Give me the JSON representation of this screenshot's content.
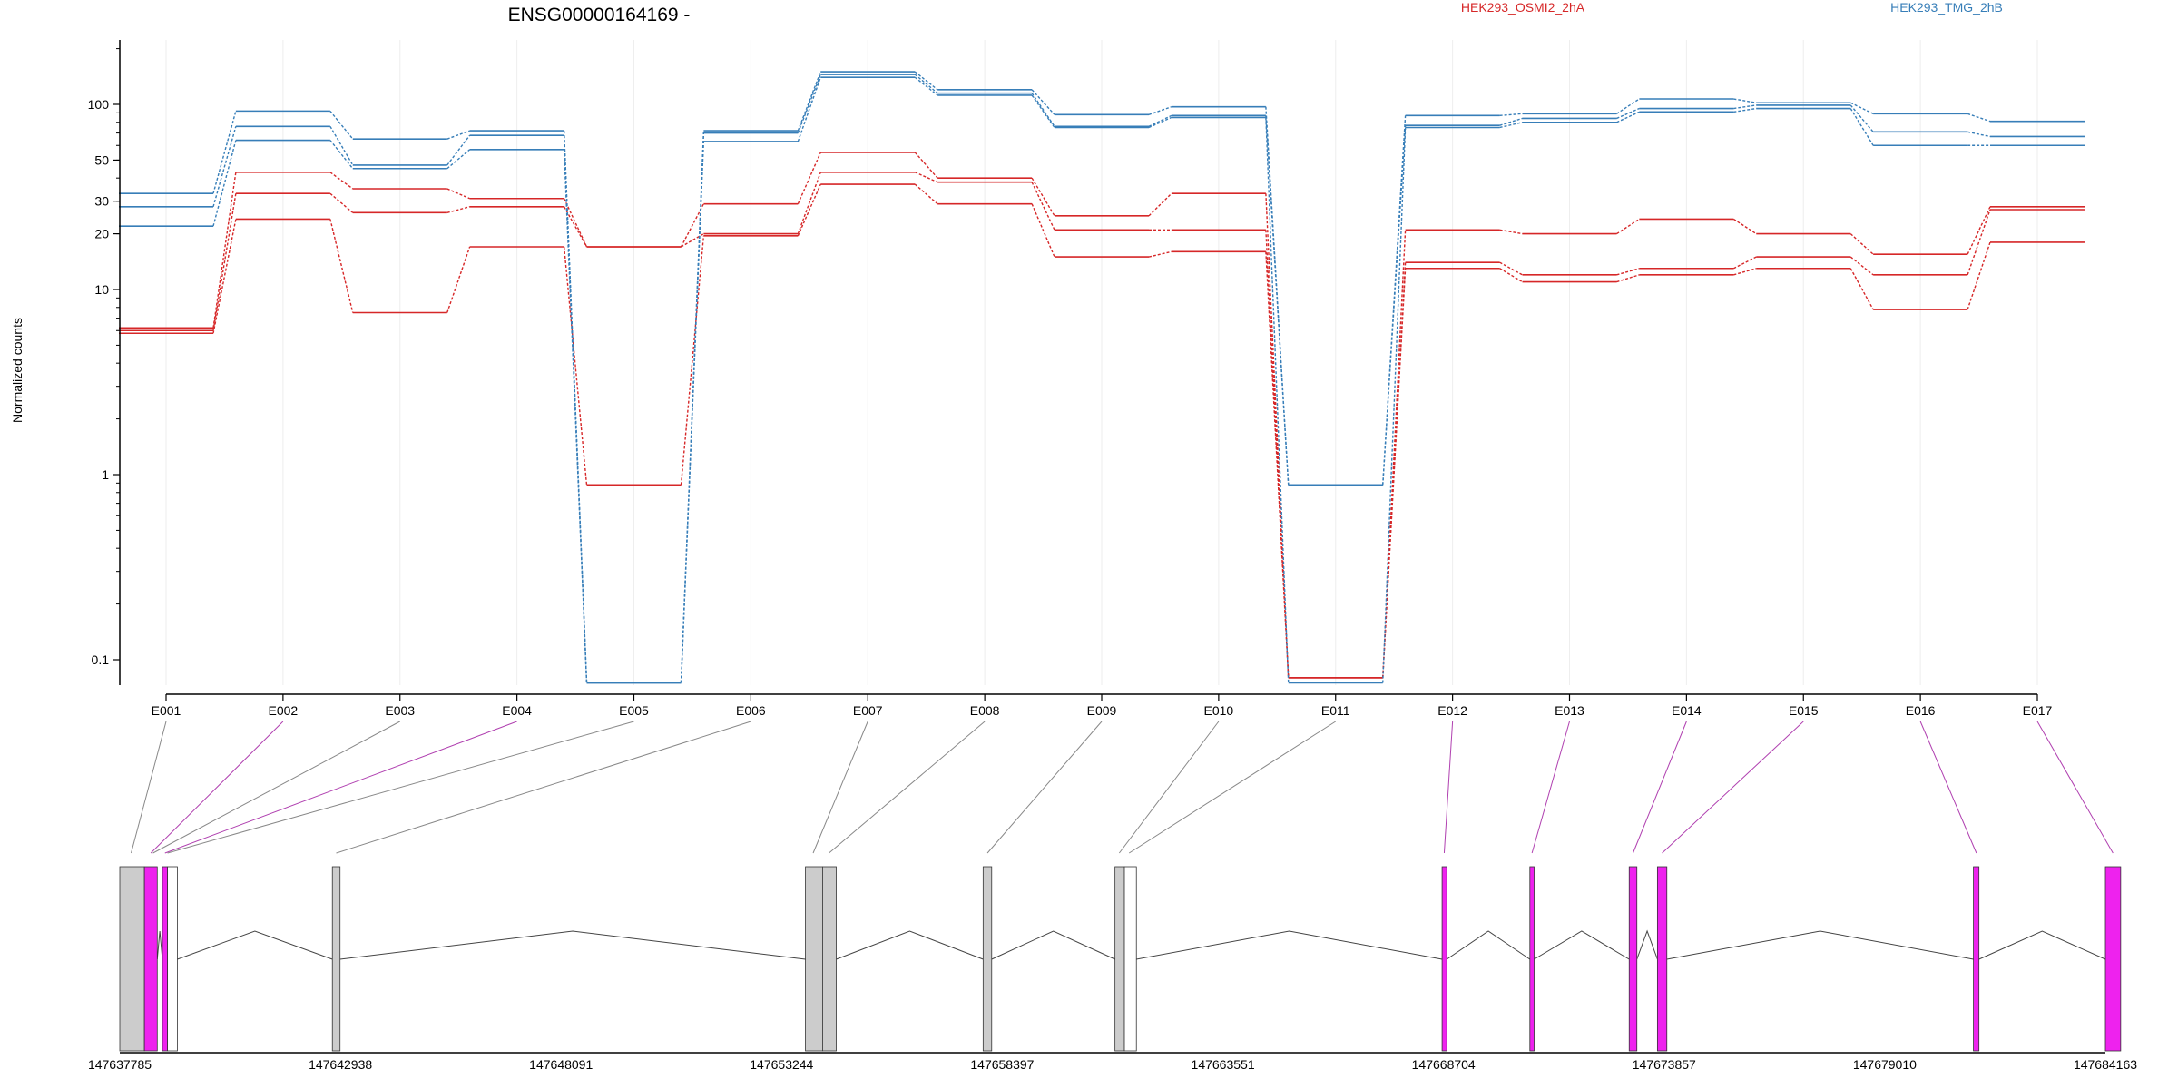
{
  "chart_data": {
    "type": "line",
    "title": "ENSG00000164169 -",
    "ylabel": "Normalized counts",
    "xlabel": "",
    "y_scale": "log",
    "ylim": [
      0.07,
      250
    ],
    "grid": "vertical lines at exon positions",
    "legend_placement": "top-right",
    "y_ticks": [
      {
        "value": 0.1,
        "label": "0.1"
      },
      {
        "value": 1,
        "label": "1"
      },
      {
        "value": 10,
        "label": "10"
      },
      {
        "value": 20,
        "label": "20"
      },
      {
        "value": 30,
        "label": "30"
      },
      {
        "value": 50,
        "label": "50"
      },
      {
        "value": 100,
        "label": "100"
      }
    ],
    "categories": [
      "E001",
      "E002",
      "E003",
      "E004",
      "E005",
      "E006",
      "E007",
      "E008",
      "E009",
      "E010",
      "E011",
      "E012",
      "E013",
      "E014",
      "E015",
      "E016",
      "E017"
    ],
    "groups": [
      {
        "name": "HEK293_OSMI2_2hA",
        "color": "#d62728"
      },
      {
        "name": "HEK293_TMG_2hB",
        "color": "#377eb8"
      }
    ],
    "series": [
      {
        "group": 0,
        "values": [
          6.2,
          43,
          35,
          31,
          17,
          29,
          55,
          40,
          25,
          33,
          0.08,
          21,
          20,
          24,
          20,
          15.5,
          28
        ]
      },
      {
        "group": 0,
        "values": [
          6.0,
          33,
          26,
          28,
          17,
          20,
          43,
          38,
          21,
          21,
          0.08,
          14,
          12,
          13,
          15,
          12,
          27
        ]
      },
      {
        "group": 0,
        "values": [
          5.8,
          24,
          7.5,
          17,
          0.88,
          19.5,
          37,
          29,
          15,
          16,
          0.08,
          13,
          11,
          12,
          13,
          7.8,
          18
        ]
      },
      {
        "group": 1,
        "values": [
          33,
          92,
          65,
          72,
          0.075,
          72,
          150,
          120,
          88,
          97,
          0.88,
          87,
          89,
          107,
          102,
          89,
          81
        ]
      },
      {
        "group": 1,
        "values": [
          28,
          76,
          47,
          68,
          0.075,
          70,
          145,
          115,
          76,
          87,
          0.88,
          77,
          84,
          95,
          99,
          71,
          67
        ]
      },
      {
        "group": 1,
        "values": [
          22,
          64,
          45,
          57,
          0.075,
          63,
          140,
          112,
          75,
          85,
          0.075,
          75,
          80,
          91,
          95,
          60,
          60
        ]
      }
    ],
    "gene_model": {
      "coordinate_ticks": [
        "147637785",
        "147642938",
        "147648091",
        "147653244",
        "147658397",
        "147663551",
        "147668704",
        "147673857",
        "147679010",
        "147684163"
      ],
      "coord_range": [
        147637785,
        147684163
      ],
      "highlight_color": "#ee22ee",
      "exon_color": "#cccccc",
      "exon_blocks": [
        {
          "start": 147637785,
          "end": 147638360,
          "fill": "gray"
        },
        {
          "start": 147638360,
          "end": 147638660,
          "fill": "magenta"
        },
        {
          "start": 147638780,
          "end": 147638900,
          "fill": "magenta"
        },
        {
          "start": 147638900,
          "end": 147639130,
          "fill": "white"
        },
        {
          "start": 147642750,
          "end": 147642930,
          "fill": "gray"
        },
        {
          "start": 147653800,
          "end": 147654200,
          "fill": "gray"
        },
        {
          "start": 147654200,
          "end": 147654520,
          "fill": "gray"
        },
        {
          "start": 147657950,
          "end": 147658150,
          "fill": "gray"
        },
        {
          "start": 147661030,
          "end": 147661250,
          "fill": "gray"
        },
        {
          "start": 147661250,
          "end": 147661530,
          "fill": "white"
        },
        {
          "start": 147668670,
          "end": 147668780,
          "fill": "magenta"
        },
        {
          "start": 147670720,
          "end": 147670820,
          "fill": "magenta"
        },
        {
          "start": 147673040,
          "end": 147673220,
          "fill": "magenta"
        },
        {
          "start": 147673700,
          "end": 147673920,
          "fill": "magenta"
        },
        {
          "start": 147681080,
          "end": 147681210,
          "fill": "magenta"
        },
        {
          "start": 147684163,
          "end": 147684520,
          "fill": "magenta"
        }
      ],
      "exon_links": [
        {
          "coord": 147638050,
          "highlight": false
        },
        {
          "coord": 147638510,
          "highlight": true
        },
        {
          "coord": 147638560,
          "highlight": false
        },
        {
          "coord": 147638840,
          "highlight": true
        },
        {
          "coord": 147638900,
          "highlight": false
        },
        {
          "coord": 147642840,
          "highlight": false
        },
        {
          "coord": 147653980,
          "highlight": false
        },
        {
          "coord": 147654350,
          "highlight": false
        },
        {
          "coord": 147658050,
          "highlight": false
        },
        {
          "coord": 147661130,
          "highlight": false
        },
        {
          "coord": 147661360,
          "highlight": false
        },
        {
          "coord": 147668720,
          "highlight": true
        },
        {
          "coord": 147670770,
          "highlight": true
        },
        {
          "coord": 147673130,
          "highlight": true
        },
        {
          "coord": 147673810,
          "highlight": true
        },
        {
          "coord": 147681150,
          "highlight": true
        },
        {
          "coord": 147684340,
          "highlight": true
        }
      ],
      "introns": [
        [
          147638660,
          147638780
        ],
        [
          147639130,
          147642750
        ],
        [
          147642930,
          147653800
        ],
        [
          147654520,
          147657950
        ],
        [
          147658150,
          147661030
        ],
        [
          147661530,
          147668670
        ],
        [
          147668780,
          147670720
        ],
        [
          147670820,
          147673040
        ],
        [
          147673220,
          147673700
        ],
        [
          147673920,
          147681080
        ],
        [
          147681210,
          147684163
        ]
      ]
    }
  }
}
